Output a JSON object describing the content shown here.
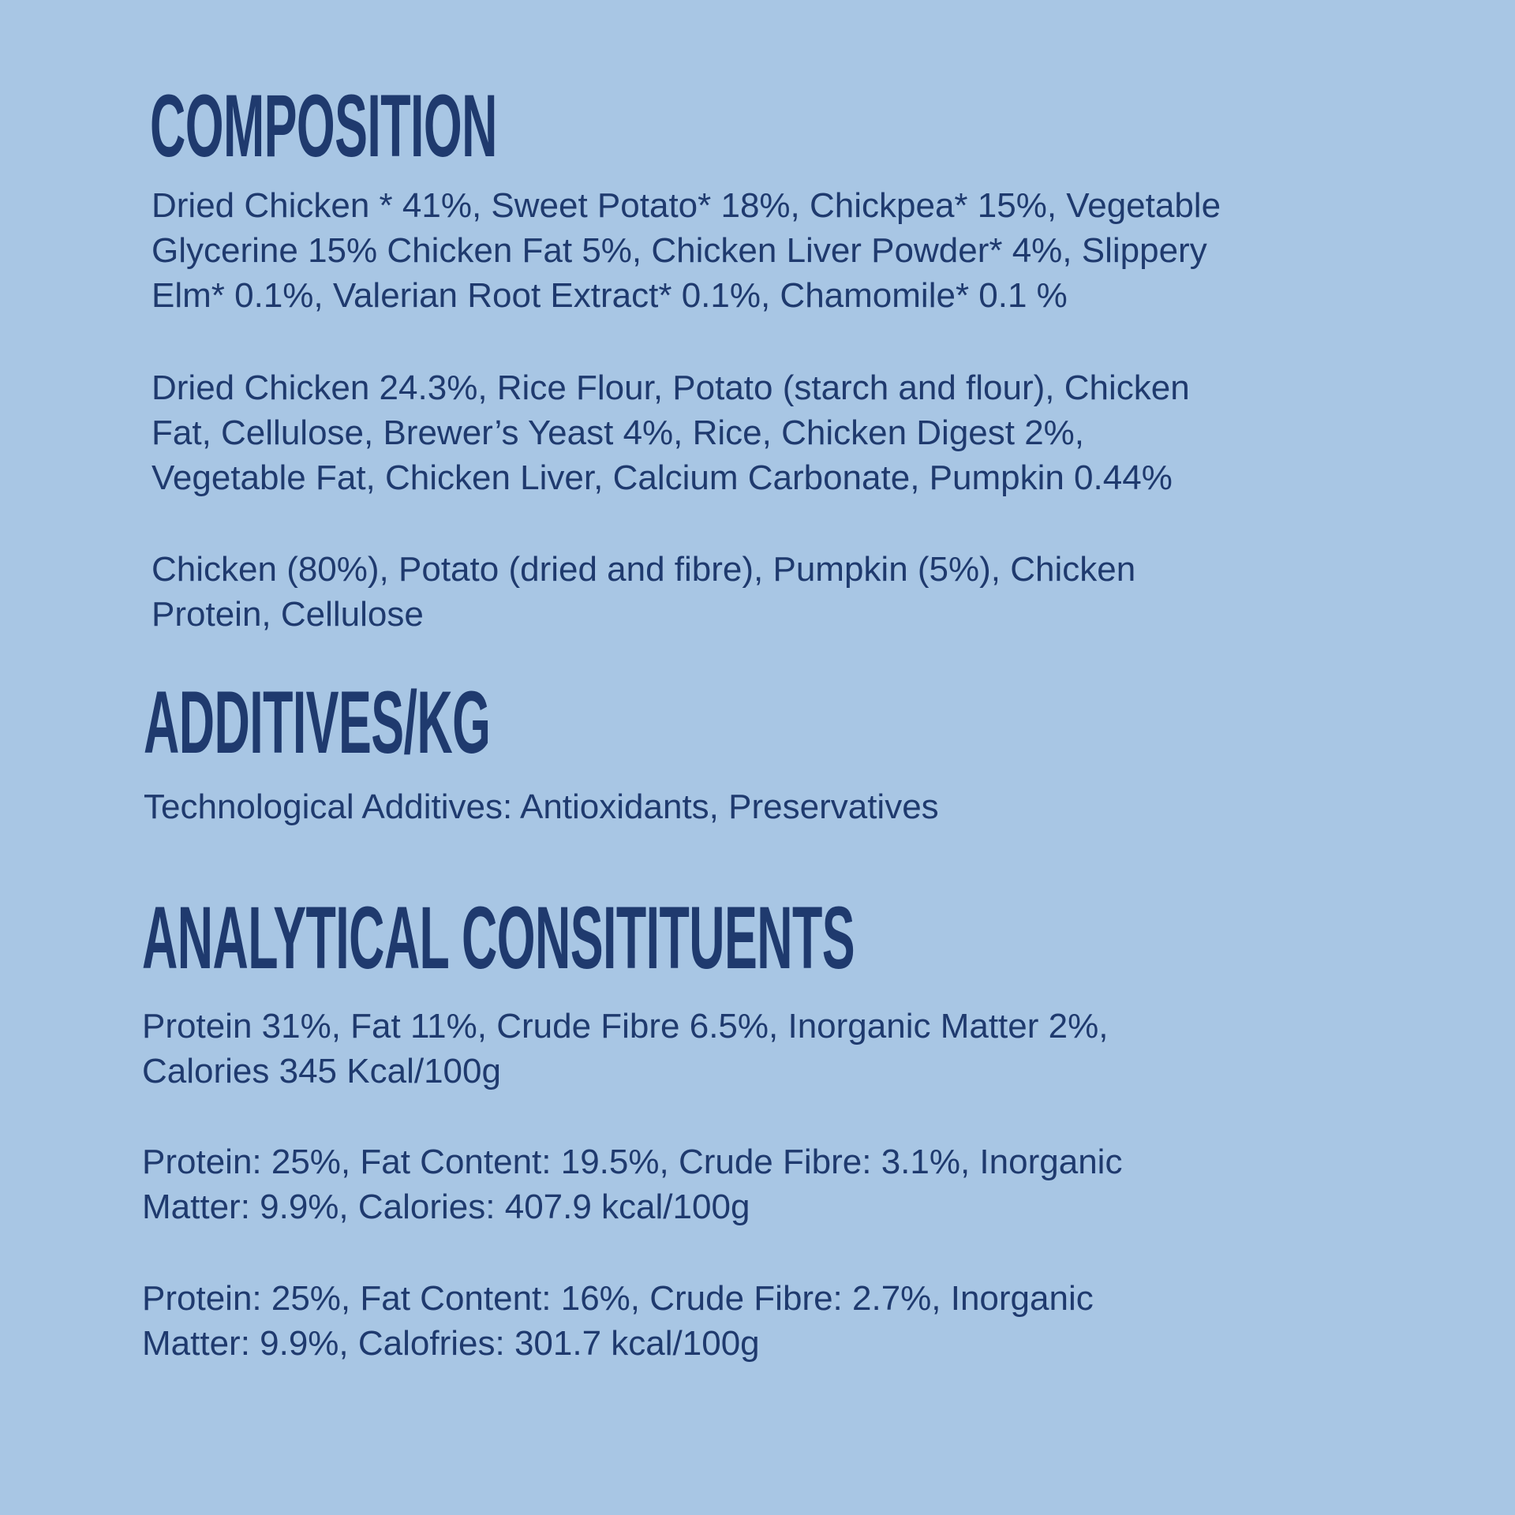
{
  "colors": {
    "background": "#a8c6e4",
    "text": "#1f3a6e"
  },
  "composition": {
    "heading": "COMPOSITION",
    "paragraphs": [
      [
        "Dried Chicken * 41%, Sweet Potato* 18%, Chickpea* 15%, Vegetable",
        "Glycerine 15% Chicken Fat 5%, Chicken Liver Powder* 4%, Slippery",
        "Elm* 0.1%, Valerian Root Extract* 0.1%, Chamomile* 0.1 %"
      ],
      [
        "Dried Chicken 24.3%, Rice Flour, Potato (starch and flour), Chicken",
        "Fat, Cellulose, Brewer’s Yeast 4%, Rice, Chicken Digest 2%,",
        "Vegetable Fat, Chicken Liver, Calcium Carbonate, Pumpkin 0.44%"
      ],
      [
        "Chicken (80%), Potato (dried and fibre), Pumpkin (5%), Chicken",
        "Protein, Cellulose"
      ]
    ]
  },
  "additives": {
    "heading": "ADDITIVES/KG",
    "paragraphs": [
      [
        "Technological Additives: Antioxidants, Preservatives"
      ]
    ]
  },
  "analytical": {
    "heading": "ANALYTICAL CONSITITUENTS",
    "paragraphs": [
      [
        "Protein 31%, Fat 11%, Crude Fibre 6.5%, Inorganic Matter 2%,",
        "Calories 345 Kcal/100g"
      ],
      [
        "Protein: 25%, Fat Content: 19.5%, Crude Fibre: 3.1%, Inorganic",
        "Matter: 9.9%, Calories: 407.9 kcal/100g"
      ],
      [
        "Protein: 25%, Fat Content: 16%, Crude Fibre: 2.7%, Inorganic",
        "Matter: 9.9%, Calofries: 301.7 kcal/100g"
      ]
    ]
  }
}
